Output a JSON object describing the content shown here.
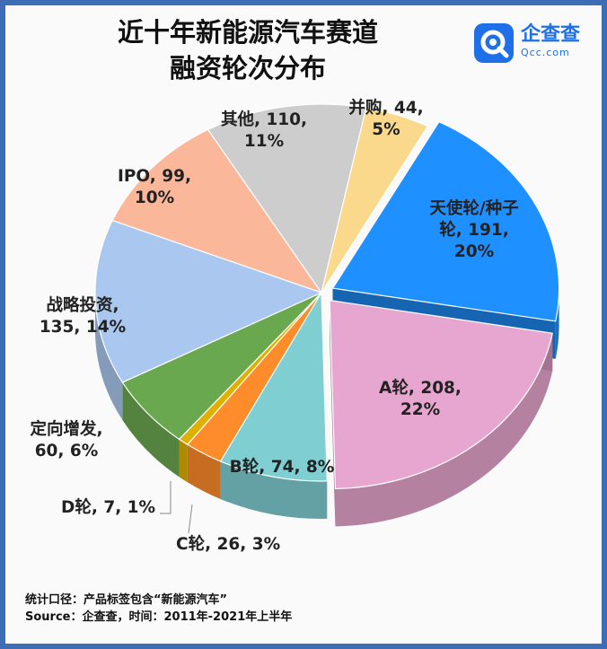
{
  "header": {
    "title_line1": "近十年新能源汽车赛道",
    "title_line2": "融资轮次分布"
  },
  "logo": {
    "name": "企查查",
    "domain": "Qcc.com",
    "color": "#1e6fe8"
  },
  "chart_data": {
    "type": "pie",
    "title": "近十年新能源汽车赛道融资轮次分布",
    "style": "3d-exploded",
    "slices": [
      {
        "name": "天使轮/种子轮",
        "value": 191,
        "percent": "20%",
        "color": "#1e90ff",
        "label_lines": [
          "天使轮/种子",
          "轮, 191,",
          "20%"
        ]
      },
      {
        "name": "A轮",
        "value": 208,
        "percent": "22%",
        "color": "#e7a6cf",
        "label_lines": [
          "A轮, 208,",
          "22%"
        ]
      },
      {
        "name": "B轮",
        "value": 74,
        "percent": "8%",
        "color": "#7fcfd2",
        "label_lines": [
          "B轮, 74, 8%"
        ]
      },
      {
        "name": "C轮",
        "value": 26,
        "percent": "3%",
        "color": "#ff8c2a",
        "label_lines": [
          "C轮, 26, 3%"
        ]
      },
      {
        "name": "D轮",
        "value": 7,
        "percent": "1%",
        "color": "#e0b000",
        "label_lines": [
          "D轮, 7, 1%"
        ]
      },
      {
        "name": "定向增发",
        "value": 60,
        "percent": "6%",
        "color": "#6aa84f",
        "label_lines": [
          "定向增发,",
          "60, 6%"
        ]
      },
      {
        "name": "战略投资",
        "value": 135,
        "percent": "14%",
        "color": "#a9c7ef",
        "label_lines": [
          "战略投资,",
          "135, 14%"
        ]
      },
      {
        "name": "IPO",
        "value": 99,
        "percent": "10%",
        "color": "#fbb79a",
        "label_lines": [
          "IPO, 99,",
          "10%"
        ]
      },
      {
        "name": "其他",
        "value": 110,
        "percent": "11%",
        "color": "#cdcdcd",
        "label_lines": [
          "其他, 110,",
          "11%"
        ]
      },
      {
        "name": "并购",
        "value": 44,
        "percent": "5%",
        "color": "#fad98c",
        "label_lines": [
          "并购, 44,",
          "5%"
        ]
      }
    ]
  },
  "footer": {
    "line1": "统计口径：产品标签包含“新能源汽车”",
    "line2": "Source：企查查，时间：2011年-2021年上半年"
  }
}
